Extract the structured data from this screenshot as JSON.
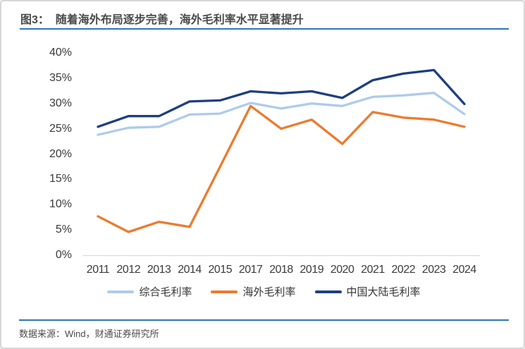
{
  "title": "图3：  随着海外布局逐步完善，海外毛利率水平显著提升",
  "source": "数据来源：Wind，财通证券研究所",
  "colors": {
    "rule_blue": "#2E75B6",
    "card_border": "#D6D6D6",
    "axis_line": "#D9D9D9",
    "title_text": "#4A4A4A",
    "axis_text": "#3A3A3A",
    "legend_text": "#333333",
    "source_text": "#4A4A4A",
    "background": "#FFFFFF"
  },
  "chart_data": {
    "type": "line",
    "categories": [
      "2011",
      "2012",
      "2013",
      "2014",
      "2015",
      "2017",
      "2018",
      "2019",
      "2020",
      "2021",
      "2022",
      "2023",
      "2024"
    ],
    "series": [
      {
        "id": "overall-gross-margin",
        "name": "综合毛利率",
        "color": "#AECBEA",
        "values": [
          23.8,
          25.2,
          25.4,
          27.8,
          28.0,
          30.1,
          29.0,
          30.0,
          29.5,
          31.3,
          31.6,
          32.1,
          27.9
        ]
      },
      {
        "id": "overseas-gross-margin",
        "name": "海外毛利率",
        "color": "#EB7B2F",
        "values": [
          7.7,
          4.6,
          6.6,
          5.6,
          17.5,
          29.5,
          25.0,
          26.8,
          22.0,
          28.3,
          27.2,
          26.8,
          25.4
        ]
      },
      {
        "id": "mainland-china-gross-margin",
        "name": "中国大陆毛利率",
        "color": "#1D3F7F",
        "values": [
          25.4,
          27.5,
          27.5,
          30.4,
          30.6,
          32.4,
          32.0,
          32.4,
          31.1,
          34.6,
          35.9,
          36.6,
          29.9
        ]
      }
    ],
    "title": "",
    "xlabel": "",
    "ylabel": "",
    "ylim": [
      0,
      40
    ],
    "ytick_step": 5,
    "ytick_format": "percent",
    "grid": false,
    "legend_position": "bottom"
  }
}
